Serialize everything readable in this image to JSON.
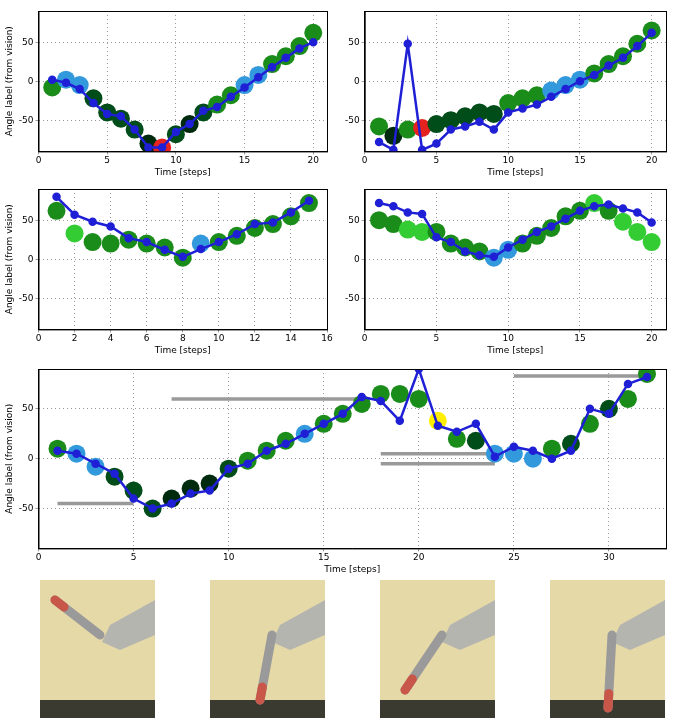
{
  "chart_data": [
    {
      "type": "line",
      "x_label": "Time [steps]",
      "y_label": "Angle label (from vision)",
      "grid": true,
      "xlim": [
        0,
        21
      ],
      "xticks": [
        0,
        5,
        10,
        15,
        20
      ],
      "ylim": [
        -90,
        90
      ],
      "yticks": [
        -50,
        0,
        50
      ],
      "x": [
        1,
        2,
        3,
        4,
        5,
        6,
        7,
        8,
        9,
        10,
        11,
        12,
        13,
        14,
        15,
        16,
        17,
        18,
        19,
        20
      ],
      "series": [
        {
          "type": "scatter",
          "marker": "circle",
          "values": [
            -8,
            2,
            -5,
            -22,
            -40,
            -48,
            -62,
            -80,
            -85,
            -68,
            -55,
            -40,
            -30,
            -18,
            -5,
            8,
            22,
            32,
            45,
            62
          ],
          "colors": [
            "#1a8c1a",
            "#3399dd",
            "#3399dd",
            "#004d1a",
            "#004d1a",
            "#004d1a",
            "#004d1a",
            "#002a0e",
            "#e6231e",
            "#004d1a",
            "#002a0e",
            "#004d1a",
            "#1a8c1a",
            "#1a8c1a",
            "#3399dd",
            "#3399dd",
            "#1a8c1a",
            "#1a8c1a",
            "#1a8c1a",
            "#1a8c1a"
          ]
        },
        {
          "type": "line",
          "marker": "circle",
          "color": "#1f1fd6",
          "values": [
            2,
            -2,
            -10,
            -28,
            -42,
            -45,
            -62,
            -85,
            -85,
            -65,
            -55,
            -38,
            -33,
            -20,
            -8,
            5,
            18,
            30,
            42,
            50
          ]
        }
      ]
    },
    {
      "type": "line",
      "x_label": "Time [steps]",
      "y_label": "",
      "grid": true,
      "xlim": [
        0,
        21
      ],
      "xticks": [
        0,
        5,
        10,
        15,
        20
      ],
      "ylim": [
        -90,
        90
      ],
      "yticks": [
        -50,
        0,
        50
      ],
      "x": [
        1,
        2,
        3,
        4,
        5,
        6,
        7,
        8,
        9,
        10,
        11,
        12,
        13,
        14,
        15,
        16,
        17,
        18,
        19,
        20
      ],
      "series": [
        {
          "type": "scatter",
          "marker": "circle",
          "values": [
            -58,
            -70,
            -62,
            -60,
            -55,
            -50,
            -45,
            -40,
            -42,
            -28,
            -22,
            -18,
            -12,
            -5,
            2,
            10,
            22,
            32,
            48,
            65
          ],
          "colors": [
            "#1a8c1a",
            "#002a0e",
            "#1a8c1a",
            "#e6231e",
            "#004d1a",
            "#004d1a",
            "#004d1a",
            "#004d1a",
            "#004d1a",
            "#1a8c1a",
            "#1a8c1a",
            "#1a8c1a",
            "#3399dd",
            "#3399dd",
            "#3399dd",
            "#1a8c1a",
            "#1a8c1a",
            "#1a8c1a",
            "#1a8c1a",
            "#1a8c1a"
          ]
        },
        {
          "type": "line",
          "marker": "circle",
          "color": "#1f1fd6",
          "values": [
            -78,
            -88,
            48,
            -88,
            -80,
            -62,
            -58,
            -52,
            -62,
            -40,
            -35,
            -30,
            -20,
            -10,
            0,
            8,
            20,
            30,
            45,
            62
          ]
        }
      ]
    },
    {
      "type": "line",
      "x_label": "Time [steps]",
      "y_label": "Angle label (from vision)",
      "grid": true,
      "xlim": [
        0,
        16
      ],
      "xticks": [
        0,
        2,
        4,
        6,
        8,
        10,
        12,
        14,
        16
      ],
      "ylim": [
        -90,
        90
      ],
      "yticks": [
        -50,
        0,
        50
      ],
      "x": [
        1,
        2,
        3,
        4,
        5,
        6,
        7,
        8,
        9,
        10,
        11,
        12,
        13,
        14,
        15
      ],
      "series": [
        {
          "type": "scatter",
          "marker": "circle",
          "values": [
            62,
            33,
            22,
            20,
            25,
            20,
            15,
            2,
            20,
            22,
            30,
            40,
            45,
            55,
            72
          ],
          "colors": [
            "#1a8c1a",
            "#33cc33",
            "#1a8c1a",
            "#1a8c1a",
            "#1a8c1a",
            "#1a8c1a",
            "#1a8c1a",
            "#1a8c1a",
            "#3399dd",
            "#1a8c1a",
            "#1a8c1a",
            "#1a8c1a",
            "#1a8c1a",
            "#1a8c1a",
            "#1a8c1a"
          ]
        },
        {
          "type": "line",
          "marker": "circle",
          "color": "#1f1fd6",
          "values": [
            80,
            57,
            48,
            42,
            27,
            22,
            12,
            3,
            13,
            22,
            32,
            45,
            47,
            60,
            75
          ]
        }
      ]
    },
    {
      "type": "line",
      "x_label": "Time [steps]",
      "y_label": "",
      "grid": true,
      "xlim": [
        0,
        21
      ],
      "xticks": [
        0,
        5,
        10,
        15,
        20
      ],
      "ylim": [
        -90,
        90
      ],
      "yticks": [
        -50,
        0,
        50
      ],
      "x": [
        1,
        2,
        3,
        4,
        5,
        6,
        7,
        8,
        9,
        10,
        11,
        12,
        13,
        14,
        15,
        16,
        17,
        18,
        19,
        20
      ],
      "series": [
        {
          "type": "scatter",
          "marker": "circle",
          "values": [
            50,
            45,
            38,
            35,
            35,
            20,
            15,
            10,
            2,
            12,
            20,
            30,
            40,
            55,
            62,
            72,
            62,
            48,
            35,
            22
          ],
          "colors": [
            "#1a8c1a",
            "#1a8c1a",
            "#33cc33",
            "#33cc33",
            "#1a8c1a",
            "#1a8c1a",
            "#1a8c1a",
            "#1a8c1a",
            "#3399dd",
            "#3399dd",
            "#1a8c1a",
            "#1a8c1a",
            "#1a8c1a",
            "#1a8c1a",
            "#1a8c1a",
            "#33cc33",
            "#1a8c1a",
            "#33cc33",
            "#33cc33",
            "#33cc33"
          ]
        },
        {
          "type": "line",
          "marker": "circle",
          "color": "#1f1fd6",
          "values": [
            72,
            68,
            60,
            58,
            28,
            22,
            10,
            5,
            3,
            15,
            25,
            35,
            42,
            52,
            62,
            68,
            70,
            65,
            60,
            47
          ]
        }
      ]
    },
    {
      "type": "line",
      "x_label": "Time [steps]",
      "y_label": "Angle label (from vision)",
      "grid": true,
      "xlim": [
        0,
        33
      ],
      "xticks": [
        0,
        5,
        10,
        15,
        20,
        25,
        30
      ],
      "ylim": [
        -90,
        90
      ],
      "yticks": [
        -50,
        0,
        50
      ],
      "x": [
        1,
        2,
        3,
        4,
        5,
        6,
        7,
        8,
        9,
        10,
        11,
        12,
        13,
        14,
        15,
        16,
        17,
        18,
        19,
        20,
        21,
        22,
        23,
        24,
        25,
        26,
        27,
        28,
        29,
        30,
        31,
        32
      ],
      "series": [
        {
          "type": "scatter",
          "marker": "circle",
          "values": [
            10,
            5,
            -8,
            -18,
            -32,
            -50,
            -40,
            -30,
            -25,
            -10,
            -2,
            8,
            18,
            25,
            35,
            45,
            55,
            65,
            65,
            60,
            38,
            20,
            18,
            5,
            5,
            0,
            10,
            15,
            35,
            50,
            60,
            85
          ],
          "colors": [
            "#1a8c1a",
            "#3399dd",
            "#3399dd",
            "#004d1a",
            "#004d1a",
            "#004d1a",
            "#002a0e",
            "#002a0e",
            "#002a0e",
            "#004d1a",
            "#1a8c1a",
            "#1a8c1a",
            "#1a8c1a",
            "#3399dd",
            "#1a8c1a",
            "#1a8c1a",
            "#1a8c1a",
            "#1a8c1a",
            "#1a8c1a",
            "#1a8c1a",
            "#ffee00",
            "#1a8c1a",
            "#004d1a",
            "#3399dd",
            "#3399dd",
            "#3399dd",
            "#1a8c1a",
            "#004d1a",
            "#1a8c1a",
            "#004d1a",
            "#1a8c1a",
            "#1a8c1a"
          ]
        },
        {
          "type": "line",
          "marker": "circle",
          "color": "#1f1fd6",
          "values": [
            8,
            5,
            -5,
            -15,
            -40,
            -50,
            -45,
            -35,
            -32,
            -10,
            -5,
            8,
            15,
            25,
            35,
            45,
            62,
            58,
            38,
            90,
            33,
            27,
            35,
            2,
            12,
            8,
            0,
            8,
            50,
            45,
            75,
            82
          ]
        }
      ],
      "segments": [
        {
          "x": [
            1,
            5
          ],
          "y": -45,
          "color": "#999999"
        },
        {
          "x": [
            7,
            17
          ],
          "y": 60,
          "color": "#999999"
        },
        {
          "x": [
            18,
            24
          ],
          "y": 5,
          "color": "#999999"
        },
        {
          "x": [
            18,
            24
          ],
          "y": -5,
          "color": "#999999"
        },
        {
          "x": [
            25,
            32
          ],
          "y": 83,
          "color": "#999999"
        }
      ]
    }
  ]
}
